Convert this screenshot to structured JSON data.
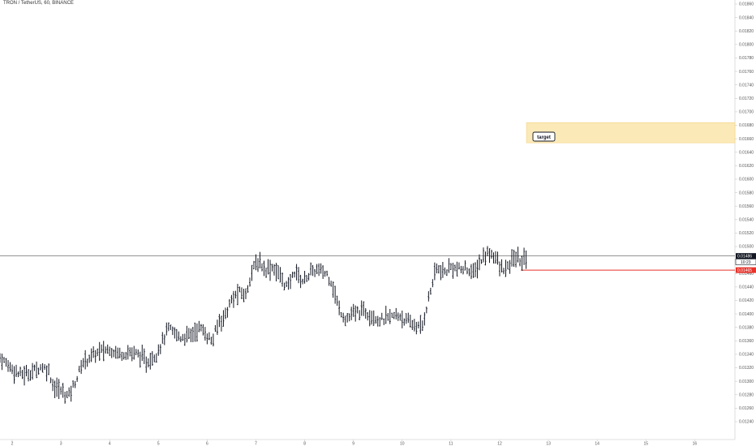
{
  "header": {
    "symbol_line": "TRON / TetherUS, 60, BINANCE"
  },
  "price_axis": {
    "last_price_label": "0.01486",
    "countdown_label": "10:23",
    "stop_price_label": "0.01465"
  },
  "annotations": {
    "target_label": "target"
  },
  "colors": {
    "candle": "#131722",
    "stop_line": "#e8322a",
    "target_fill": "#fbeab8",
    "target_border": "#f5d380",
    "price_line": "#555555"
  },
  "chart_data": {
    "type": "ohlc",
    "title": "TRON / TetherUS, 60, BINANCE",
    "x_ticks": [
      "2",
      "3",
      "4",
      "5",
      "6",
      "7",
      "8",
      "9",
      "10",
      "11",
      "12",
      "13",
      "14",
      "15",
      "16"
    ],
    "y_ticks": [
      "0.01240",
      "0.01260",
      "0.01280",
      "0.01300",
      "0.01320",
      "0.01340",
      "0.01360",
      "0.01380",
      "0.01400",
      "0.01420",
      "0.01440",
      "0.01460",
      "0.01480",
      "0.01500",
      "0.01520",
      "0.01540",
      "0.01560",
      "0.01580",
      "0.01600",
      "0.01620",
      "0.01640",
      "0.01660",
      "0.01680",
      "0.01700",
      "0.01720",
      "0.01740",
      "0.01760",
      "0.01780",
      "0.01800",
      "0.01820",
      "0.01840",
      "0.01860"
    ],
    "ylim": [
      0.0123,
      0.0187
    ],
    "xlim_days": [
      1.75,
      15.25
    ],
    "last_price": 0.01486,
    "stop_level": 0.01465,
    "target_zone": {
      "low": 0.01654,
      "high": 0.01684,
      "from_day": 12.55
    },
    "series_day_price": [
      [
        1.75,
        0.01335
      ],
      [
        1.95,
        0.01322
      ],
      [
        2.15,
        0.0131
      ],
      [
        2.35,
        0.01312
      ],
      [
        2.6,
        0.01322
      ],
      [
        2.75,
        0.01316
      ],
      [
        2.85,
        0.01292
      ],
      [
        3.0,
        0.01286
      ],
      [
        3.15,
        0.01278
      ],
      [
        3.3,
        0.013
      ],
      [
        3.45,
        0.01328
      ],
      [
        3.6,
        0.01336
      ],
      [
        3.8,
        0.01344
      ],
      [
        4.0,
        0.01348
      ],
      [
        4.2,
        0.01341
      ],
      [
        4.4,
        0.01343
      ],
      [
        4.6,
        0.0134
      ],
      [
        4.75,
        0.01328
      ],
      [
        4.95,
        0.0134
      ],
      [
        5.1,
        0.01362
      ],
      [
        5.2,
        0.01378
      ],
      [
        5.45,
        0.01365
      ],
      [
        5.65,
        0.01368
      ],
      [
        5.85,
        0.0138
      ],
      [
        6.0,
        0.01368
      ],
      [
        6.1,
        0.01358
      ],
      [
        6.25,
        0.0139
      ],
      [
        6.35,
        0.01395
      ],
      [
        6.5,
        0.0142
      ],
      [
        6.65,
        0.01432
      ],
      [
        6.8,
        0.01428
      ],
      [
        6.9,
        0.01462
      ],
      [
        7.05,
        0.01478
      ],
      [
        7.2,
        0.01466
      ],
      [
        7.35,
        0.0147
      ],
      [
        7.5,
        0.01456
      ],
      [
        7.65,
        0.01438
      ],
      [
        7.8,
        0.01465
      ],
      [
        7.95,
        0.01448
      ],
      [
        8.1,
        0.0146
      ],
      [
        8.25,
        0.01465
      ],
      [
        8.45,
        0.0146
      ],
      [
        8.55,
        0.01448
      ],
      [
        8.7,
        0.01408
      ],
      [
        8.85,
        0.01392
      ],
      [
        9.0,
        0.014
      ],
      [
        9.2,
        0.01405
      ],
      [
        9.4,
        0.01398
      ],
      [
        9.55,
        0.0139
      ],
      [
        9.75,
        0.01395
      ],
      [
        9.95,
        0.01398
      ],
      [
        10.1,
        0.01388
      ],
      [
        10.3,
        0.01382
      ],
      [
        10.4,
        0.01378
      ],
      [
        10.5,
        0.0141
      ],
      [
        10.6,
        0.0144
      ],
      [
        10.7,
        0.01468
      ],
      [
        10.85,
        0.0146
      ],
      [
        11.0,
        0.0147
      ],
      [
        11.2,
        0.01465
      ],
      [
        11.35,
        0.01468
      ],
      [
        11.45,
        0.01458
      ],
      [
        11.6,
        0.01478
      ],
      [
        11.75,
        0.0149
      ],
      [
        11.9,
        0.01488
      ],
      [
        12.0,
        0.01468
      ],
      [
        12.15,
        0.01465
      ],
      [
        12.3,
        0.01485
      ],
      [
        12.45,
        0.01478
      ],
      [
        12.55,
        0.01486
      ]
    ]
  }
}
